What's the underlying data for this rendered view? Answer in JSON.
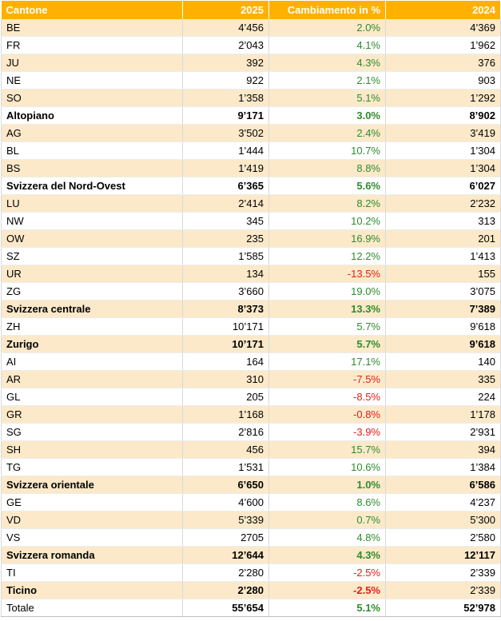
{
  "table": {
    "header": [
      "Cantone",
      "2025",
      "Cambiamento in %",
      "2024"
    ],
    "rows": [
      {
        "cells": [
          "BE",
          "4’456",
          "2.0%",
          "4’369"
        ]
      },
      {
        "cells": [
          "FR",
          "2’043",
          "4.1%",
          "1’962"
        ]
      },
      {
        "cells": [
          "JU",
          "392",
          "4.3%",
          "376"
        ]
      },
      {
        "cells": [
          "NE",
          "922",
          "2.1%",
          "903"
        ]
      },
      {
        "cells": [
          "SO",
          "1’358",
          "5.1%",
          "1’292"
        ]
      },
      {
        "cells": [
          "Altopiano",
          "9’171",
          "3.0%",
          "8’902"
        ],
        "bold": [
          0,
          1,
          2,
          3
        ]
      },
      {
        "cells": [
          "AG",
          "3’502",
          "2.4%",
          "3’419"
        ]
      },
      {
        "cells": [
          "BL",
          "1’444",
          "10.7%",
          "1’304"
        ]
      },
      {
        "cells": [
          "BS",
          "1’419",
          "8.8%",
          "1’304"
        ]
      },
      {
        "cells": [
          "Svizzera del Nord-Ovest",
          "6’365",
          "5.6%",
          "6’027"
        ],
        "bold": [
          0,
          1,
          2,
          3
        ]
      },
      {
        "cells": [
          "LU",
          "2’414",
          "8.2%",
          "2’232"
        ]
      },
      {
        "cells": [
          "NW",
          "345",
          "10.2%",
          "313"
        ]
      },
      {
        "cells": [
          "OW",
          "235",
          "16.9%",
          "201"
        ]
      },
      {
        "cells": [
          "SZ",
          "1’585",
          "12.2%",
          "1’413"
        ]
      },
      {
        "cells": [
          "UR",
          "134",
          "-13.5%",
          "155"
        ]
      },
      {
        "cells": [
          "ZG",
          "3’660",
          "19.0%",
          "3’075"
        ]
      },
      {
        "cells": [
          "Svizzera centrale",
          "8’373",
          "13.3%",
          "7’389"
        ],
        "bold": [
          0,
          1,
          2,
          3
        ]
      },
      {
        "cells": [
          "ZH",
          "10’171",
          "5.7%",
          "9’618"
        ]
      },
      {
        "cells": [
          "Zurigo",
          "10’171",
          "5.7%",
          "9’618"
        ],
        "bold": [
          0,
          1,
          2,
          3
        ]
      },
      {
        "cells": [
          "AI",
          "164",
          "17.1%",
          "140"
        ]
      },
      {
        "cells": [
          "AR",
          "310",
          "-7.5%",
          "335"
        ]
      },
      {
        "cells": [
          "GL",
          "205",
          "-8.5%",
          "224"
        ]
      },
      {
        "cells": [
          "GR",
          "1’168",
          "-0.8%",
          "1’178"
        ]
      },
      {
        "cells": [
          "SG",
          "2’816",
          "-3.9%",
          "2’931"
        ]
      },
      {
        "cells": [
          "SH",
          "456",
          "15.7%",
          "394"
        ]
      },
      {
        "cells": [
          "TG",
          "1’531",
          "10.6%",
          "1’384"
        ]
      },
      {
        "cells": [
          "Svizzera orientale",
          "6’650",
          "1.0%",
          "6’586"
        ],
        "bold": [
          0,
          1,
          2,
          3
        ]
      },
      {
        "cells": [
          "GE",
          "4’600",
          "8.6%",
          "4’237"
        ]
      },
      {
        "cells": [
          "VD",
          "5’339",
          "0.7%",
          "5’300"
        ]
      },
      {
        "cells": [
          "VS",
          "2705",
          "4.8%",
          "2’580"
        ]
      },
      {
        "cells": [
          "Svizzera romanda",
          "12’644",
          "4.3%",
          "12’117"
        ],
        "bold": [
          0,
          1,
          2,
          3
        ]
      },
      {
        "cells": [
          "TI",
          "2’280",
          "-2.5%",
          "2’339"
        ]
      },
      {
        "cells": [
          "Ticino",
          "2’280",
          "-2.5%",
          "2’339"
        ],
        "bold": [
          0,
          1,
          2
        ]
      },
      {
        "cells": [
          "Totale",
          "55’654",
          "5.1%",
          "52’978"
        ],
        "bold": [
          1,
          2,
          3
        ]
      }
    ]
  }
}
